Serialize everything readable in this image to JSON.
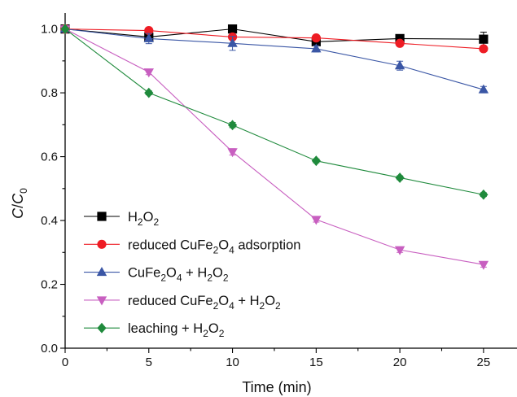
{
  "chart_data": {
    "type": "line",
    "title": "",
    "xlabel": "Time (min)",
    "ylabel": {
      "main": "C",
      "slash": "/",
      "sub_main": "C",
      "sub": "0"
    },
    "x": [
      0,
      5,
      10,
      15,
      20,
      25
    ],
    "xlim": [
      0,
      27
    ],
    "ylim": [
      0,
      1.05
    ],
    "x_ticks": [
      "0",
      "5",
      "10",
      "15",
      "20",
      "25"
    ],
    "y_ticks": [
      "0.0",
      "0.2",
      "0.4",
      "0.6",
      "0.8",
      "1.0"
    ],
    "grid": false,
    "legend_position": "bottom-left",
    "series": [
      {
        "name": "H2O2",
        "legend": [
          {
            "t": "H"
          },
          {
            "t": "2",
            "sub": true
          },
          {
            "t": "O"
          },
          {
            "t": "2",
            "sub": true
          }
        ],
        "values": [
          1.0,
          0.975,
          1.0,
          0.96,
          0.97,
          0.968
        ],
        "errors": [
          0,
          0.012,
          0,
          0.012,
          0.012,
          0.022
        ],
        "marker": "square",
        "color": "#000000"
      },
      {
        "name": "reduced CuFe2O4 adsorption",
        "legend": [
          {
            "t": "reduced CuFe"
          },
          {
            "t": "2",
            "sub": true
          },
          {
            "t": "O"
          },
          {
            "t": "4",
            "sub": true
          },
          {
            "t": " adsorption"
          }
        ],
        "values": [
          1.0,
          0.995,
          0.975,
          0.972,
          0.955,
          0.938
        ],
        "errors": [
          0,
          0.006,
          0.008,
          0.006,
          0.008,
          0.008
        ],
        "marker": "circle",
        "color": "#ee1c24"
      },
      {
        "name": "CuFe2O4 + H2O2",
        "legend": [
          {
            "t": "CuFe"
          },
          {
            "t": "2",
            "sub": true
          },
          {
            "t": "O"
          },
          {
            "t": "4",
            "sub": true
          },
          {
            "t": " + H"
          },
          {
            "t": "2",
            "sub": true
          },
          {
            "t": "O"
          },
          {
            "t": "2",
            "sub": true
          }
        ],
        "values": [
          1.0,
          0.97,
          0.955,
          0.938,
          0.885,
          0.81
        ],
        "errors": [
          0,
          0.016,
          0.022,
          0.01,
          0.014,
          0.01
        ],
        "marker": "triangle-up",
        "color": "#3a56a5"
      },
      {
        "name": "reduced CuFe2O4 + H2O2",
        "legend": [
          {
            "t": "reduced CuFe"
          },
          {
            "t": "2",
            "sub": true
          },
          {
            "t": "O"
          },
          {
            "t": "4",
            "sub": true
          },
          {
            "t": " + H"
          },
          {
            "t": "2",
            "sub": true
          },
          {
            "t": "O"
          },
          {
            "t": "2",
            "sub": true
          }
        ],
        "values": [
          1.0,
          0.865,
          0.615,
          0.403,
          0.308,
          0.262
        ],
        "errors": [
          0,
          0.008,
          0.01,
          0.008,
          0.008,
          0.008
        ],
        "marker": "triangle-down",
        "color": "#c85fc0"
      },
      {
        "name": "leaching + H2O2",
        "legend": [
          {
            "t": "leaching + H"
          },
          {
            "t": "2",
            "sub": true
          },
          {
            "t": "O"
          },
          {
            "t": "2",
            "sub": true
          }
        ],
        "values": [
          1.0,
          0.8,
          0.699,
          0.587,
          0.534,
          0.481
        ],
        "errors": [
          0,
          0.006,
          0.008,
          0.006,
          0.006,
          0.006
        ],
        "marker": "diamond",
        "color": "#1f8a3c"
      }
    ]
  }
}
